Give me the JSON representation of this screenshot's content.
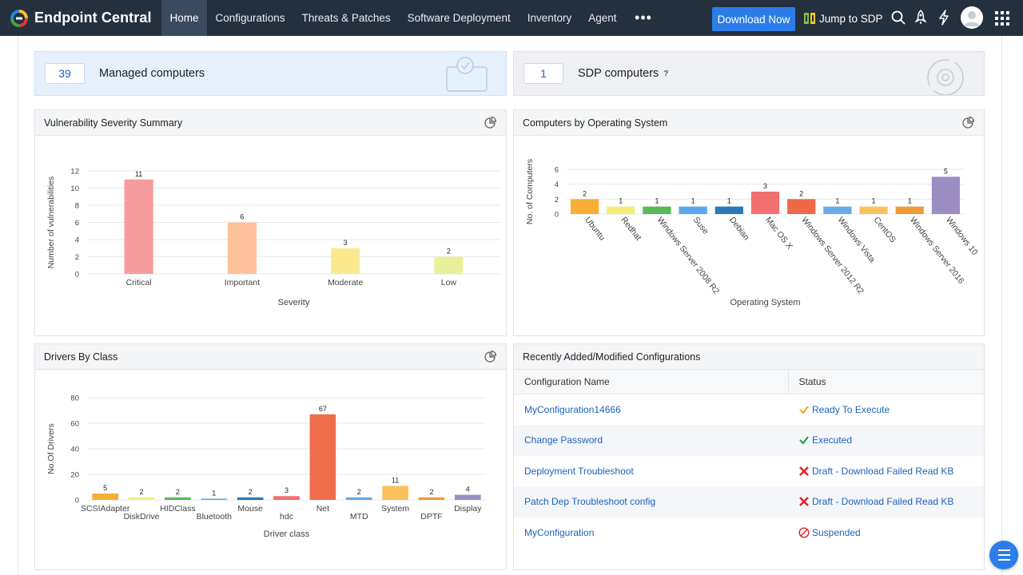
{
  "app": {
    "name": "Endpoint Central"
  },
  "nav": {
    "items": [
      {
        "label": "Home",
        "active": true
      },
      {
        "label": "Configurations"
      },
      {
        "label": "Threats & Patches"
      },
      {
        "label": "Software Deployment"
      },
      {
        "label": "Inventory"
      },
      {
        "label": "Agent"
      }
    ],
    "more_label": "•••",
    "download_label": "Download Now",
    "jump_label": "Jump to SDP",
    "icons": [
      "search-icon",
      "rocket-icon",
      "lightning-icon",
      "avatar",
      "apps-grid-icon"
    ]
  },
  "summary": {
    "managed": {
      "count": "39",
      "label": "Managed computers"
    },
    "sdp": {
      "count": "1",
      "label": "SDP computers",
      "help": "?"
    }
  },
  "panels": {
    "vuln": {
      "title": "Vulnerability Severity Summary"
    },
    "os": {
      "title": "Computers by Operating System"
    },
    "drivers": {
      "title": "Drivers By Class"
    },
    "configs": {
      "title": "Recently Added/Modified Configurations"
    }
  },
  "configs": {
    "headers": [
      "Configuration Name",
      "Status"
    ],
    "rows": [
      {
        "name": "MyConfiguration14666",
        "status": "Ready To Execute",
        "icon": "check-orange"
      },
      {
        "name": "Change Password",
        "status": "Executed",
        "icon": "check-green"
      },
      {
        "name": "Deployment Troubleshoot",
        "status": "Draft - Download Failed Read KB",
        "icon": "cross-red"
      },
      {
        "name": "Patch Dep Troubleshoot config",
        "status": "Draft - Download Failed Read KB",
        "icon": "cross-red"
      },
      {
        "name": "MyConfiguration",
        "status": "Suspended",
        "icon": "suspended-red"
      }
    ]
  },
  "colors": {
    "accent": "#2b7de9",
    "nav_bg": "#25303f",
    "link": "#1c63b9"
  },
  "chart_data": [
    {
      "type": "bar",
      "title": "Vulnerability Severity Summary",
      "xlabel": "Severity",
      "ylabel": "Number of vulnerabilities",
      "categories": [
        "Critical",
        "Important",
        "Moderate",
        "Low"
      ],
      "values": [
        11,
        6,
        3,
        2
      ],
      "ylim": [
        0,
        12
      ],
      "yticks": [
        0,
        2,
        4,
        6,
        8,
        10,
        12
      ],
      "colors": [
        "#f79c9c",
        "#fdc29c",
        "#fbe98f",
        "#e9f09a"
      ]
    },
    {
      "type": "bar",
      "title": "Computers by Operating System",
      "xlabel": "Operating System",
      "ylabel": "No. of Computers",
      "categories": [
        "Ubuntu",
        "Redhat",
        "Windows Server 2008 R2",
        "Suse",
        "Debian",
        "Mac OS X",
        "Windows Server 2012 R2",
        "Windows Vista",
        "CentOS",
        "Windows Server 2016",
        "Windows 10"
      ],
      "values": [
        2,
        1,
        1,
        1,
        1,
        3,
        2,
        1,
        1,
        1,
        5
      ],
      "ylim": [
        0,
        6
      ],
      "yticks": [
        0,
        2,
        4,
        6
      ],
      "colors": [
        "#f8ae35",
        "#f5ec7a",
        "#55b957",
        "#5ba6ea",
        "#2a79b8",
        "#f26f6f",
        "#ee6a47",
        "#6aa9e8",
        "#fbc15a",
        "#f09a3a",
        "#9b8dc4"
      ]
    },
    {
      "type": "bar",
      "title": "Drivers By Class",
      "xlabel": "Driver class",
      "ylabel": "No.Of Drivers",
      "categories": [
        "SCSIAdapter",
        "DiskDrive",
        "HIDClass",
        "Bluetooth",
        "Mouse",
        "hdc",
        "Net",
        "MTD",
        "System",
        "DPTF",
        "Display"
      ],
      "values": [
        5,
        2,
        2,
        1,
        2,
        3,
        67,
        2,
        11,
        2,
        4
      ],
      "ylim": [
        0,
        80
      ],
      "yticks": [
        0,
        20,
        40,
        60,
        80
      ],
      "colors": [
        "#f8ae35",
        "#f5ec7a",
        "#55b957",
        "#5ba6ea",
        "#2a79b8",
        "#f26f6f",
        "#ef6d4a",
        "#6aa9e8",
        "#fbc15a",
        "#f09a3a",
        "#9b8dc4"
      ]
    }
  ]
}
